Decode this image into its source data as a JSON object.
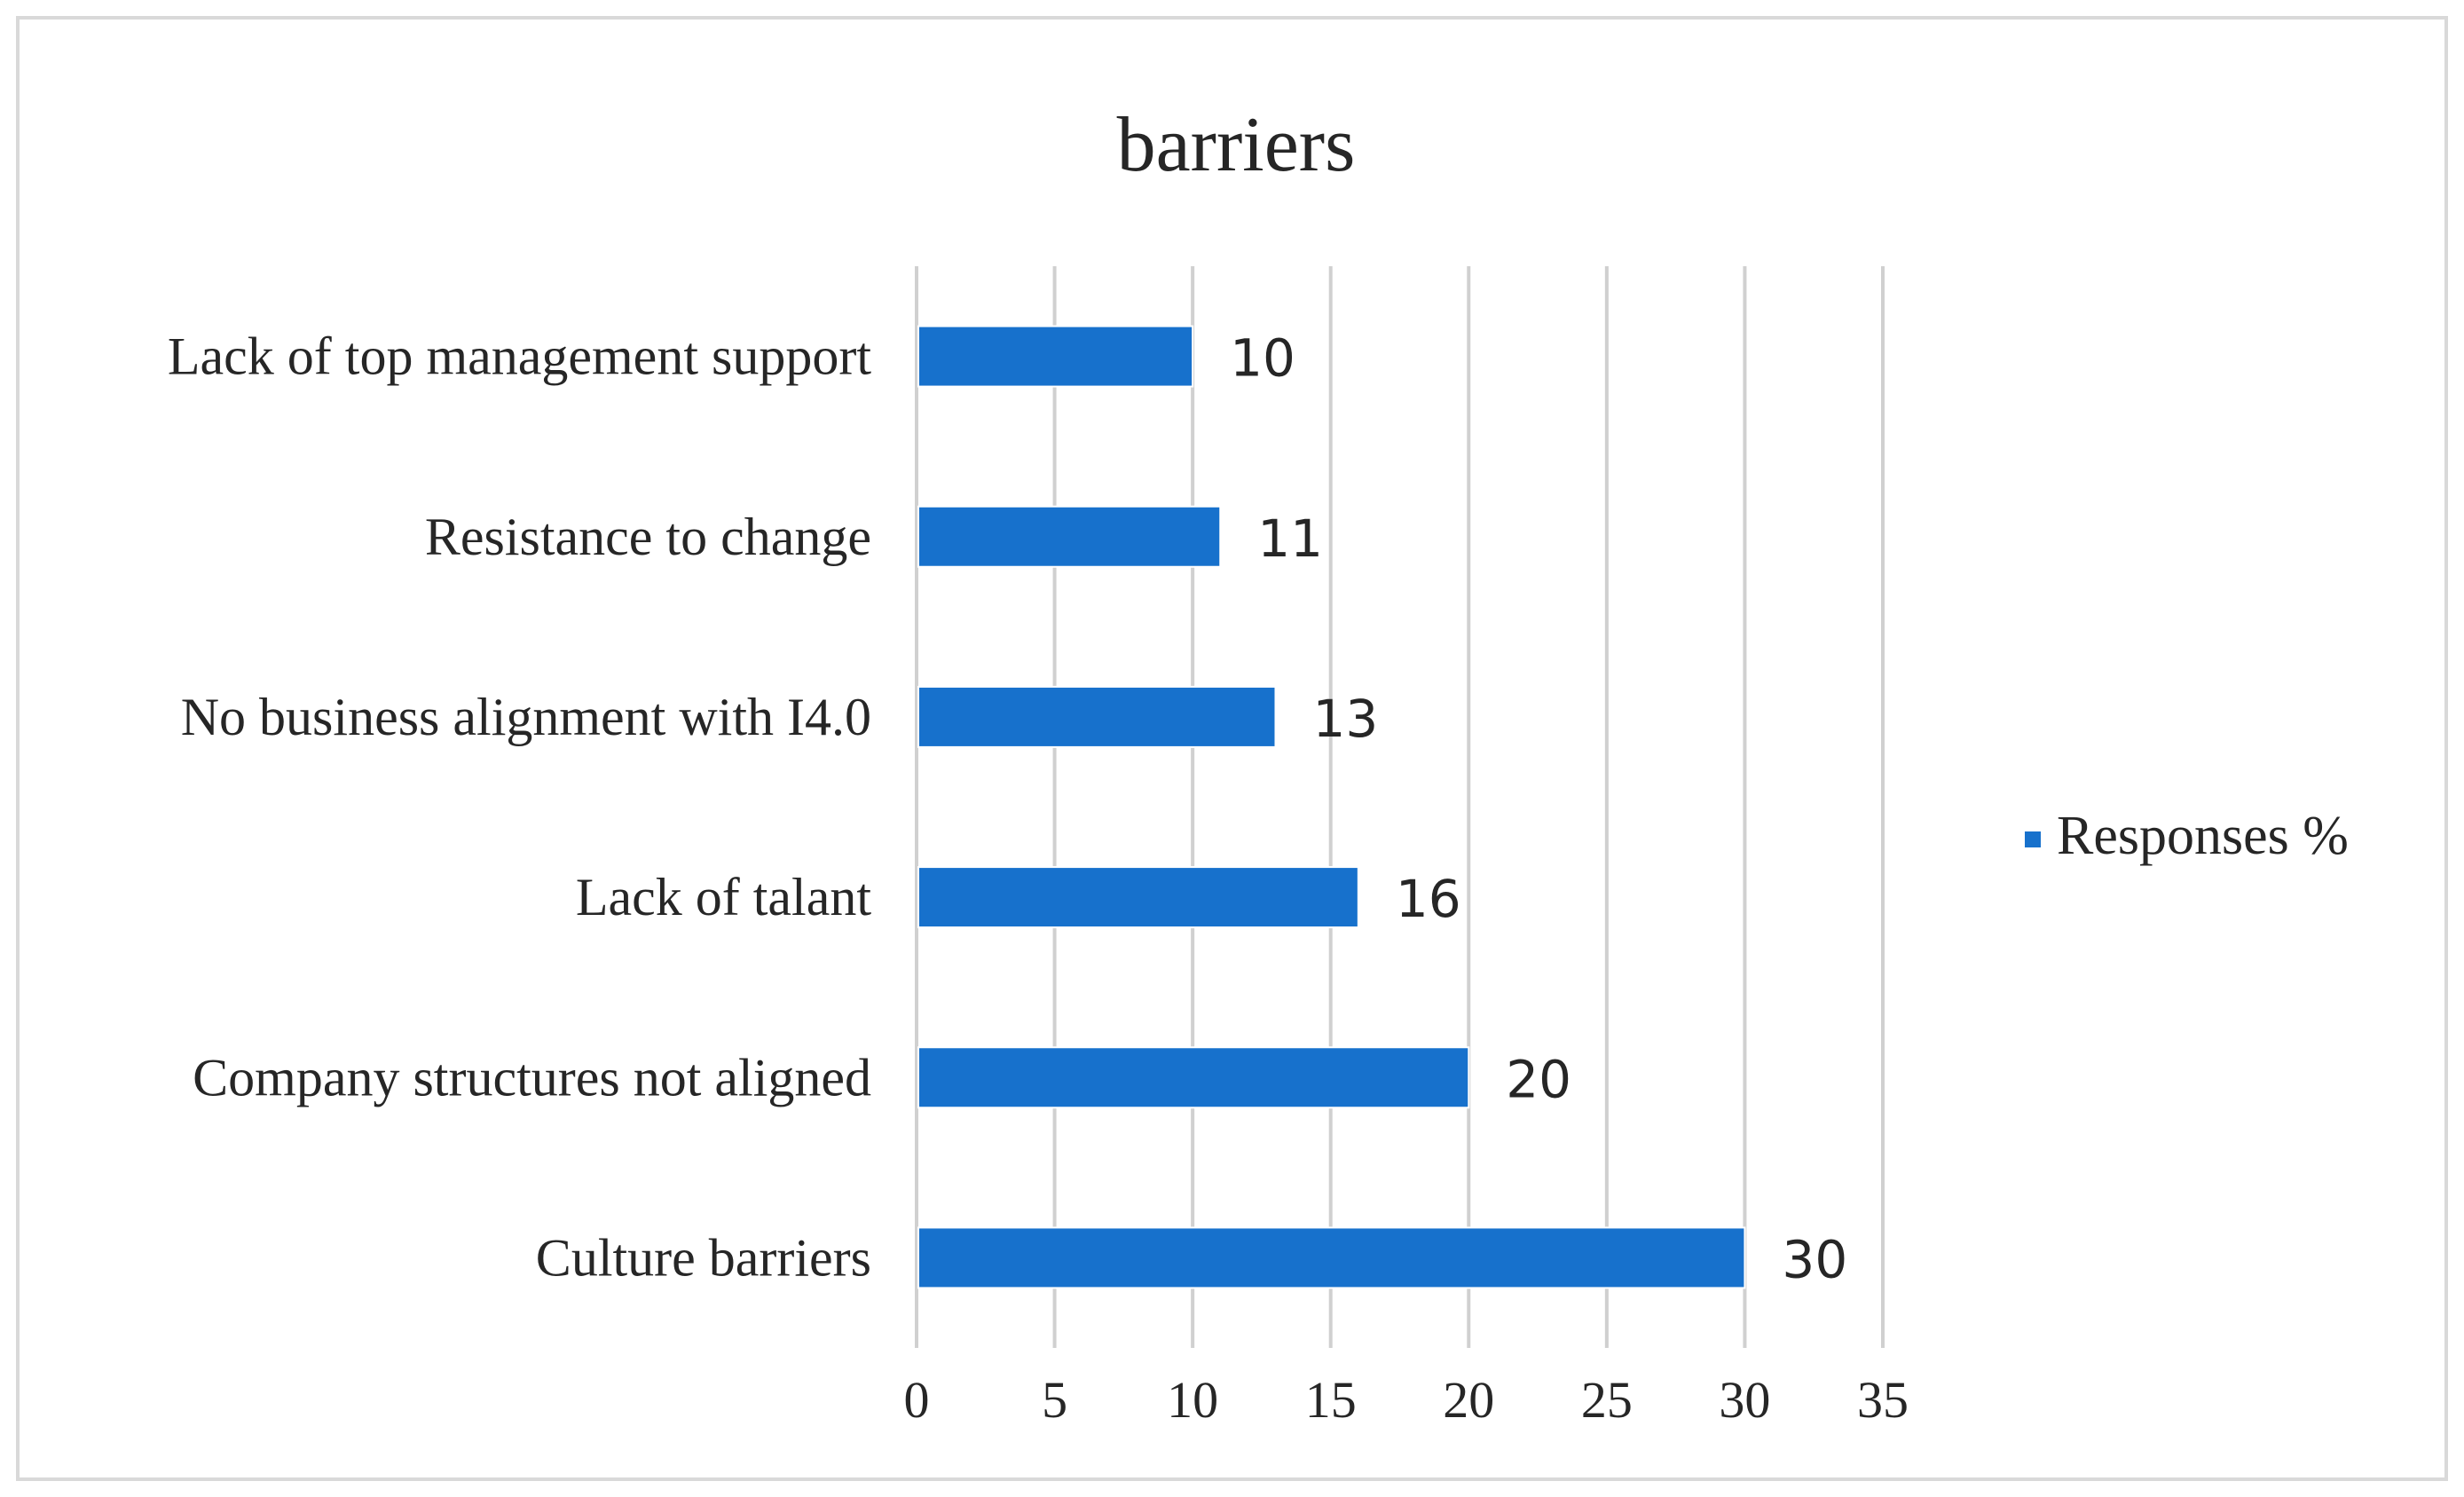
{
  "chart_data": {
    "type": "bar",
    "orientation": "horizontal",
    "title": "barriers",
    "categories": [
      "Lack of top management support",
      "Resistance to change",
      "No business alignment with I4.0",
      "Lack of talant",
      "Company structures not aligned",
      "Culture barriers"
    ],
    "series": [
      {
        "name": "Responses %",
        "values": [
          10,
          11,
          13,
          16,
          20,
          30
        ]
      }
    ],
    "data_labels": [
      "10",
      "11",
      "13",
      "16",
      "20",
      "30"
    ],
    "xlim": [
      0,
      35
    ],
    "x_ticks": [
      "0",
      "5",
      "10",
      "15",
      "20",
      "25",
      "30",
      "35"
    ],
    "xlabel": "",
    "ylabel": "",
    "grid": "vertical",
    "legend_position": "right",
    "colors": {
      "bar": "#1771cc",
      "bar_edge": "#ffffff",
      "grid": "#d0d0d0",
      "text": "#262626",
      "border": "#d9d9d9"
    }
  }
}
